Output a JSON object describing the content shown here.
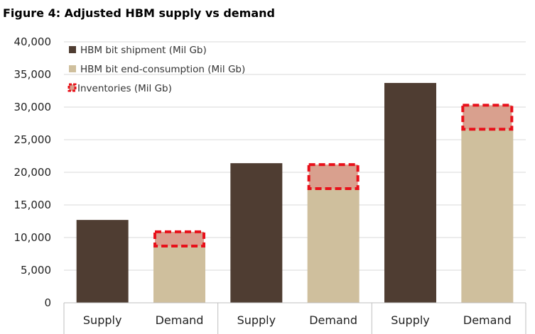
{
  "colors": {
    "shipment": "#4f3d32",
    "consumption": "#cfbf9d",
    "inventory_fill": "#d9a08e",
    "inventory_border": "#e8101a",
    "grid": "#d9d9d9",
    "axis": "#bfbfbf"
  },
  "chart_data": {
    "type": "bar",
    "title": "Figure 4: Adjusted HBM supply vs demand",
    "xlabel": "",
    "ylabel": "",
    "ylim": [
      0,
      40000
    ],
    "y_ticks": [
      "0",
      "5,000",
      "10,000",
      "15,000",
      "20,000",
      "25,000",
      "30,000",
      "35,000",
      "40,000"
    ],
    "y_tick_values": [
      0,
      5000,
      10000,
      15000,
      20000,
      25000,
      30000,
      35000,
      40000
    ],
    "categories": [
      "Supply",
      "Demand",
      "Supply",
      "Demand",
      "Supply",
      "Demand"
    ],
    "groups": 3,
    "legend_position": "top-left",
    "series": [
      {
        "name": "HBM bit shipment (Mil Gb)",
        "values": [
          12700,
          null,
          21400,
          null,
          33700,
          null
        ]
      },
      {
        "name": "HBM bit end-consumption (Mil Gb)",
        "values": [
          null,
          8700,
          null,
          17500,
          null,
          26600
        ]
      },
      {
        "name": "Inventories (Mil Gb)",
        "values": [
          null,
          2400,
          null,
          3900,
          null,
          3900
        ]
      }
    ]
  }
}
